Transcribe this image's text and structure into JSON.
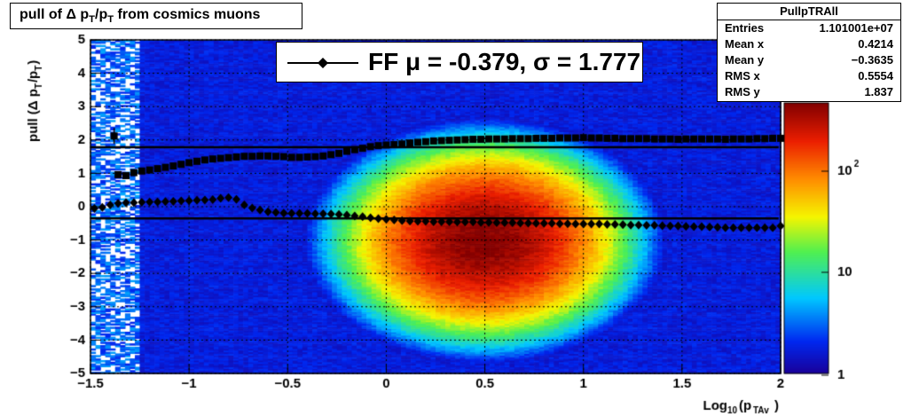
{
  "title": {
    "prefix": "pull of ",
    "delta": "Δ",
    "p": "p",
    "sub_T": "T",
    "slash": "/p",
    "suffix": " from cosmics muons"
  },
  "stats": {
    "name": "PullpTRAll",
    "rows": [
      {
        "label": "Entries",
        "value": "1.101001e+07"
      },
      {
        "label": "Mean x",
        "value": "0.4214"
      },
      {
        "label": "Mean y",
        "value": "−0.3635"
      },
      {
        "label": "RMS x",
        "value": "0.5554"
      },
      {
        "label": "RMS y",
        "value": "1.837"
      }
    ]
  },
  "legend": {
    "text": "FF μ = -0.379, σ =   1.777"
  },
  "colors": {
    "marker": "#000000",
    "fitline": "#000000"
  },
  "chart_data": {
    "type": "heatmap",
    "xlabel": "Log10(pTAv)",
    "ylabel": "pull (Δ pT/pT)",
    "xlim": [
      -1.5,
      2
    ],
    "ylim": [
      -5,
      5
    ],
    "x_ticks": [
      "−1.5",
      "−1",
      "−0.5",
      "0",
      "0.5",
      "1",
      "1.5",
      "2"
    ],
    "x_tick_values": [
      -1.5,
      -1,
      -0.5,
      0,
      0.5,
      1,
      1.5,
      2
    ],
    "y_ticks": [
      "−5",
      "−4",
      "−3",
      "−2",
      "−1",
      "0",
      "1",
      "2",
      "3",
      "4",
      "5"
    ],
    "y_tick_values": [
      -5,
      -4,
      -3,
      -2,
      -1,
      0,
      1,
      2,
      3,
      4,
      5
    ],
    "z_scale": "log",
    "z_ticks": [
      "1",
      "10",
      "10^2"
    ],
    "z_tick_values": [
      1,
      10,
      100
    ],
    "density_peak": {
      "x": 0.5,
      "y": -1.0
    },
    "fit_lines": [
      {
        "y": 1.78
      },
      {
        "y": -0.35
      }
    ],
    "series": [
      {
        "marker": "diamond",
        "x": [
          -1.48,
          -1.44,
          -1.4,
          -1.36,
          -1.32,
          -1.28,
          -1.24,
          -1.2,
          -1.16,
          -1.12,
          -1.08,
          -1.04,
          -1.0,
          -0.96,
          -0.92,
          -0.88,
          -0.84,
          -0.8,
          -0.76,
          -0.72,
          -0.68,
          -0.64,
          -0.6,
          -0.56,
          -0.52,
          -0.48,
          -0.44,
          -0.4,
          -0.36,
          -0.32,
          -0.28,
          -0.24,
          -0.2,
          -0.16,
          -0.12,
          -0.08,
          -0.04,
          0.0,
          0.04,
          0.08,
          0.12,
          0.16,
          0.2,
          0.24,
          0.28,
          0.32,
          0.36,
          0.4,
          0.44,
          0.48,
          0.52,
          0.56,
          0.6,
          0.64,
          0.68,
          0.72,
          0.76,
          0.8,
          0.84,
          0.88,
          0.92,
          0.96,
          1.0,
          1.04,
          1.08,
          1.12,
          1.16,
          1.2,
          1.24,
          1.28,
          1.32,
          1.36,
          1.4,
          1.44,
          1.48,
          1.52,
          1.56,
          1.6,
          1.64,
          1.68,
          1.72,
          1.76,
          1.8,
          1.84,
          1.88,
          1.92,
          1.96,
          2.0
        ],
        "y": [
          -0.05,
          -0.02,
          0.05,
          0.1,
          0.12,
          0.12,
          0.13,
          0.14,
          0.14,
          0.15,
          0.16,
          0.17,
          0.18,
          0.19,
          0.2,
          0.21,
          0.25,
          0.27,
          0.22,
          0.05,
          -0.04,
          -0.1,
          -0.15,
          -0.17,
          -0.19,
          -0.2,
          -0.2,
          -0.2,
          -0.21,
          -0.21,
          -0.22,
          -0.23,
          -0.25,
          -0.28,
          -0.3,
          -0.33,
          -0.36,
          -0.38,
          -0.4,
          -0.42,
          -0.43,
          -0.44,
          -0.44,
          -0.45,
          -0.45,
          -0.45,
          -0.46,
          -0.46,
          -0.46,
          -0.47,
          -0.47,
          -0.48,
          -0.48,
          -0.48,
          -0.49,
          -0.49,
          -0.5,
          -0.5,
          -0.5,
          -0.51,
          -0.51,
          -0.52,
          -0.52,
          -0.52,
          -0.52,
          -0.53,
          -0.53,
          -0.54,
          -0.55,
          -0.55,
          -0.56,
          -0.56,
          -0.57,
          -0.58,
          -0.58,
          -0.59,
          -0.6,
          -0.6,
          -0.61,
          -0.62,
          -0.63,
          -0.63,
          -0.63,
          -0.63,
          -0.63,
          -0.63,
          -0.63,
          -0.58
        ]
      },
      {
        "marker": "square",
        "x": [
          -1.36,
          -1.32,
          -1.28,
          -1.24,
          -1.2,
          -1.16,
          -1.12,
          -1.08,
          -1.04,
          -1.0,
          -0.96,
          -0.92,
          -0.88,
          -0.84,
          -0.8,
          -0.76,
          -0.72,
          -0.68,
          -0.64,
          -0.6,
          -0.56,
          -0.52,
          -0.48,
          -0.44,
          -0.4,
          -0.36,
          -0.32,
          -0.28,
          -0.24,
          -0.2,
          -0.16,
          -0.12,
          -0.08,
          -0.04,
          0.0,
          0.04,
          0.08,
          0.12,
          0.16,
          0.2,
          0.24,
          0.28,
          0.32,
          0.36,
          0.4,
          0.44,
          0.48,
          0.52,
          0.56,
          0.6,
          0.64,
          0.68,
          0.72,
          0.76,
          0.8,
          0.84,
          0.88,
          0.92,
          0.96,
          1.0,
          1.04,
          1.08,
          1.12,
          1.16,
          1.2,
          1.24,
          1.28,
          1.32,
          1.36,
          1.4,
          1.44,
          1.48,
          1.52,
          1.56,
          1.6,
          1.64,
          1.68,
          1.72,
          1.76,
          1.8,
          1.84,
          1.88,
          1.92,
          1.96,
          2.0
        ],
        "y": [
          0.96,
          0.93,
          1.02,
          1.07,
          1.1,
          1.14,
          1.18,
          1.22,
          1.27,
          1.32,
          1.36,
          1.4,
          1.43,
          1.45,
          1.47,
          1.49,
          1.51,
          1.51,
          1.52,
          1.52,
          1.51,
          1.5,
          1.48,
          1.48,
          1.49,
          1.5,
          1.52,
          1.56,
          1.6,
          1.66,
          1.71,
          1.75,
          1.8,
          1.83,
          1.85,
          1.86,
          1.88,
          1.91,
          1.93,
          1.95,
          1.97,
          1.98,
          1.99,
          2.0,
          2.01,
          2.02,
          2.02,
          2.03,
          2.03,
          2.03,
          2.04,
          2.04,
          2.04,
          2.05,
          2.05,
          2.05,
          2.06,
          2.06,
          2.06,
          2.07,
          2.06,
          2.06,
          2.05,
          2.05,
          2.04,
          2.04,
          2.04,
          2.04,
          2.03,
          2.03,
          2.03,
          2.02,
          2.03,
          2.03,
          2.03,
          2.03,
          2.03,
          2.02,
          2.03,
          2.03,
          2.03,
          2.04,
          2.04,
          2.05,
          2.05
        ]
      }
    ],
    "outlier_point": {
      "x": -1.38,
      "y": 2.12
    }
  }
}
